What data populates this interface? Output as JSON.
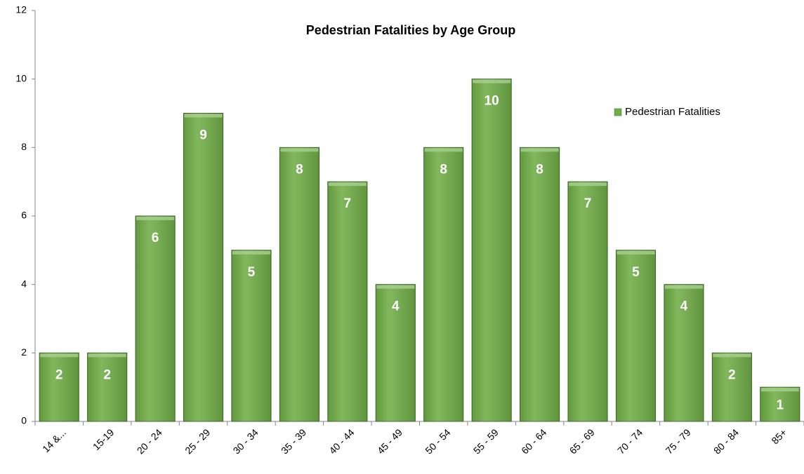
{
  "chart_data": {
    "type": "bar",
    "title": "Pedestrian Fatalities by Age Group",
    "categories": [
      "14 &...",
      "15-19",
      "20 - 24",
      "25 - 29",
      "30 - 34",
      "35 - 39",
      "40 - 44",
      "45 - 49",
      "50 - 54",
      "55 - 59",
      "60 - 64",
      "65 - 69",
      "70 - 74",
      "75 - 79",
      "80 - 84",
      "85+"
    ],
    "series": [
      {
        "name": "Pedestrian Fatalities",
        "color": "#70ad47",
        "values": [
          2,
          2,
          6,
          9,
          5,
          8,
          7,
          4,
          8,
          10,
          8,
          7,
          5,
          4,
          2,
          1
        ]
      }
    ],
    "ylim": [
      0,
      12
    ],
    "yticks": [
      0,
      2,
      4,
      6,
      8,
      10,
      12
    ],
    "grid": false,
    "legend": "upper right"
  }
}
